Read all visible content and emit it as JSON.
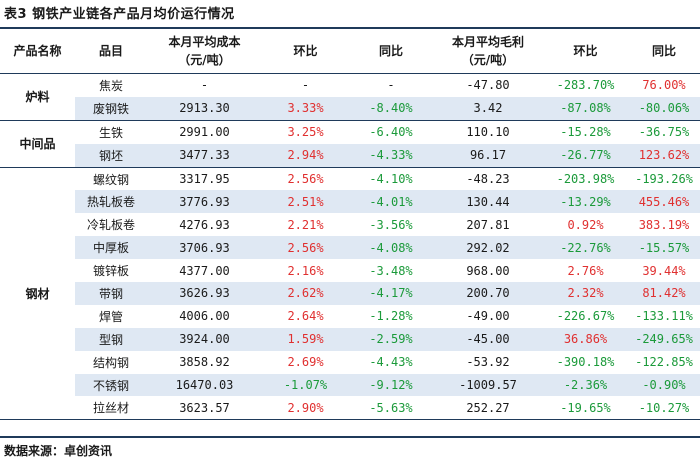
{
  "title": "表3 钢铁产业链各产品月均价运行情况",
  "headers": {
    "category": "产品名称",
    "item": "品目",
    "cost": [
      "本月平均成本",
      "（元/吨）"
    ],
    "cost_mom": "环比",
    "cost_yoy": "同比",
    "margin": [
      "本月平均毛利",
      "（元/吨）"
    ],
    "margin_mom": "环比",
    "margin_yoy": "同比"
  },
  "groups": [
    {
      "name": "炉料",
      "rows": [
        {
          "item": "焦炭",
          "cost": "-",
          "cost_mom": "-",
          "cost_yoy": "-",
          "margin": "-47.80",
          "margin_mom": "-283.70%",
          "margin_yoy": "76.00%"
        },
        {
          "item": "废钢铁",
          "cost": "2913.30",
          "cost_mom": "3.33%",
          "cost_yoy": "-8.40%",
          "margin": "3.42",
          "margin_mom": "-87.08%",
          "margin_yoy": "-80.06%"
        }
      ]
    },
    {
      "name": "中间品",
      "rows": [
        {
          "item": "生铁",
          "cost": "2991.00",
          "cost_mom": "3.25%",
          "cost_yoy": "-6.40%",
          "margin": "110.10",
          "margin_mom": "-15.28%",
          "margin_yoy": "-36.75%"
        },
        {
          "item": "钢坯",
          "cost": "3477.33",
          "cost_mom": "2.94%",
          "cost_yoy": "-4.33%",
          "margin": "96.17",
          "margin_mom": "-26.77%",
          "margin_yoy": "123.62%"
        }
      ]
    },
    {
      "name": "钢材",
      "rows": [
        {
          "item": "螺纹钢",
          "cost": "3317.95",
          "cost_mom": "2.56%",
          "cost_yoy": "-4.10%",
          "margin": "-48.23",
          "margin_mom": "-203.98%",
          "margin_yoy": "-193.26%"
        },
        {
          "item": "热轧板卷",
          "cost": "3776.93",
          "cost_mom": "2.51%",
          "cost_yoy": "-4.01%",
          "margin": "130.44",
          "margin_mom": "-13.29%",
          "margin_yoy": "455.46%"
        },
        {
          "item": "冷轧板卷",
          "cost": "4276.93",
          "cost_mom": "2.21%",
          "cost_yoy": "-3.56%",
          "margin": "207.81",
          "margin_mom": "0.92%",
          "margin_yoy": "383.19%"
        },
        {
          "item": "中厚板",
          "cost": "3706.93",
          "cost_mom": "2.56%",
          "cost_yoy": "-4.08%",
          "margin": "292.02",
          "margin_mom": "-22.76%",
          "margin_yoy": "-15.57%"
        },
        {
          "item": "镀锌板",
          "cost": "4377.00",
          "cost_mom": "2.16%",
          "cost_yoy": "-3.48%",
          "margin": "968.00",
          "margin_mom": "2.76%",
          "margin_yoy": "39.44%"
        },
        {
          "item": "带钢",
          "cost": "3626.93",
          "cost_mom": "2.62%",
          "cost_yoy": "-4.17%",
          "margin": "200.70",
          "margin_mom": "2.32%",
          "margin_yoy": "81.42%"
        },
        {
          "item": "焊管",
          "cost": "4006.00",
          "cost_mom": "2.64%",
          "cost_yoy": "-1.28%",
          "margin": "-49.00",
          "margin_mom": "-226.67%",
          "margin_yoy": "-133.11%"
        },
        {
          "item": "型钢",
          "cost": "3924.00",
          "cost_mom": "1.59%",
          "cost_yoy": "-2.59%",
          "margin": "-45.00",
          "margin_mom": "36.86%",
          "margin_yoy": "-249.65%"
        },
        {
          "item": "结构钢",
          "cost": "3858.92",
          "cost_mom": "2.69%",
          "cost_yoy": "-4.43%",
          "margin": "-53.92",
          "margin_mom": "-390.18%",
          "margin_yoy": "-122.85%"
        },
        {
          "item": "不锈钢",
          "cost": "16470.03",
          "cost_mom": "-1.07%",
          "cost_yoy": "-9.12%",
          "margin": "-1009.57",
          "margin_mom": "-2.36%",
          "margin_yoy": "-0.90%"
        },
        {
          "item": "拉丝材",
          "cost": "3623.57",
          "cost_mom": "2.90%",
          "cost_yoy": "-5.63%",
          "margin": "252.27",
          "margin_mom": "-19.65%",
          "margin_yoy": "-10.27%"
        }
      ]
    }
  ],
  "source": "数据来源：卓创资讯",
  "colors": {
    "up": "#e03030",
    "down": "#1b9a3a",
    "shade": "#dfe8f3",
    "rule": "#1f3a5a"
  }
}
